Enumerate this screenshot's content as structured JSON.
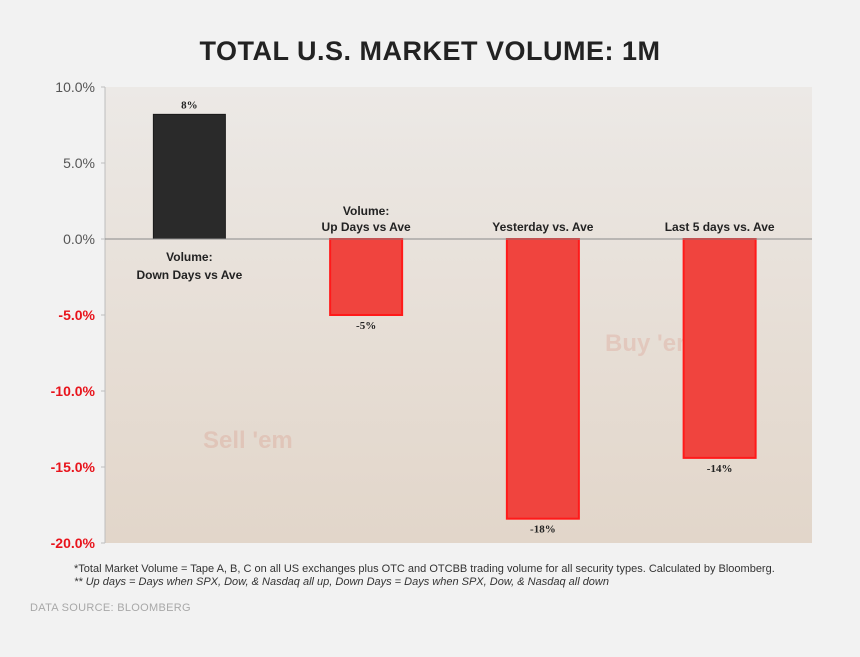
{
  "chart_data": {
    "type": "bar",
    "title": "TOTAL U.S. MARKET VOLUME:  1M",
    "categories": [
      [
        "Volume:",
        "Down Days vs Ave"
      ],
      [
        "Volume:",
        "Up Days vs Ave"
      ],
      [
        "Yesterday vs. Ave"
      ],
      [
        "Last 5 days vs. Ave"
      ]
    ],
    "values": [
      8.2,
      -5.0,
      -18.4,
      -14.4
    ],
    "data_labels": [
      "8%",
      "-5%",
      "-18%",
      "-14%"
    ],
    "ylim": [
      -20,
      10
    ],
    "yticks": [
      10,
      5,
      0,
      -5,
      -10,
      -15,
      -20
    ],
    "ytick_labels": [
      "10.0%",
      "5.0%",
      "0.0%",
      "-5.0%",
      "-10.0%",
      "-15.0%",
      "-20.0%"
    ],
    "xlabel": "",
    "ylabel": "",
    "grid": false,
    "colors": {
      "positive_bar": "#2a2a2a",
      "negative_bar": "#f0443e",
      "negative_bar_border": "#ff1a1a",
      "negative_tick_label": "#e8141c",
      "positive_tick_label": "#555555"
    }
  },
  "watermarks": [
    "Sell 'em",
    "Buy 'em"
  ],
  "notes": [
    "*Total Market Volume = Tape A, B, C on all US exchanges  plus OTC and OTCBB trading volume for all security types.  Calculated by Bloomberg.",
    "** Up days = Days when SPX, Dow, & Nasdaq  all up, Down Days = Days when SPX, Dow, & Nasdaq  all down"
  ],
  "source": "DATA SOURCE:   BLOOMBERG"
}
